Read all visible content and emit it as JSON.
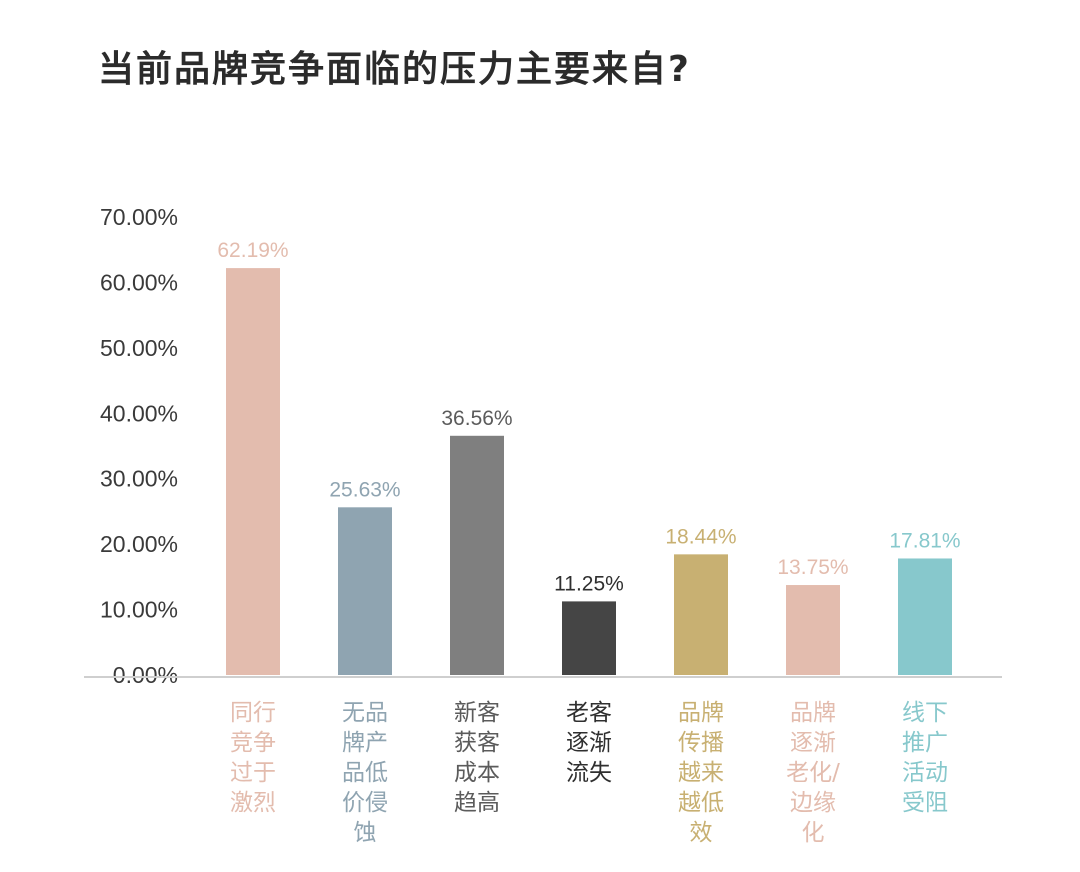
{
  "title": "当前品牌竞争面临的压力主要来自?",
  "chart_data": {
    "type": "bar",
    "categories": [
      "同行竞争过于激烈",
      "无品牌产品低价侵蚀",
      "新客获客成本趋高",
      "老客逐渐流失",
      "品牌传播越来越低效",
      "品牌逐渐老化/边缘化",
      "线下推广活动受阻"
    ],
    "category_lines": [
      [
        "同行",
        "竞争",
        "过于",
        "激烈"
      ],
      [
        "无品",
        "牌产",
        "品低",
        "价侵",
        "蚀"
      ],
      [
        "新客",
        "获客",
        "成本",
        "趋高"
      ],
      [
        "老客",
        "逐渐",
        "流失"
      ],
      [
        "品牌",
        "传播",
        "越来",
        "越低",
        "效"
      ],
      [
        "品牌",
        "逐渐",
        "老化/",
        "边缘",
        "化"
      ],
      [
        "线下",
        "推广",
        "活动",
        "受阻"
      ]
    ],
    "values": [
      62.19,
      25.63,
      36.56,
      11.25,
      18.44,
      13.75,
      17.81
    ],
    "value_labels": [
      "62.19%",
      "25.63%",
      "36.56%",
      "11.25%",
      "18.44%",
      "13.75%",
      "17.81%"
    ],
    "bar_colors": [
      "#e3bcae",
      "#8fa4b1",
      "#7f7f7f",
      "#454545",
      "#c8b072",
      "#e3bcae",
      "#87c8cc"
    ],
    "label_colors": [
      "#e3bcae",
      "#8fa4b1",
      "#5b5b5b",
      "#2f2f2f",
      "#c8b072",
      "#e3bcae",
      "#87c8cc"
    ],
    "yticks": [
      "0.00%",
      "10.00%",
      "20.00%",
      "30.00%",
      "40.00%",
      "50.00%",
      "60.00%",
      "70.00%"
    ],
    "ylim": [
      0,
      70
    ],
    "axis_color": "#cfcfcf",
    "grid": false,
    "legend": "none"
  }
}
